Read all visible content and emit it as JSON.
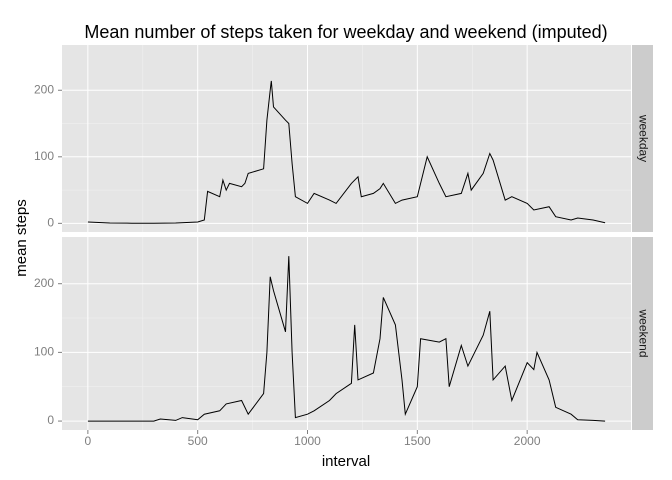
{
  "chart_data": {
    "type": "line",
    "title": "Mean number of steps taken for weekday and weekend (imputed)",
    "x_label": "interval",
    "y_label": "mean steps",
    "xlim": [
      -117.75,
      2472.75
    ],
    "ylim": [
      -13,
      268
    ],
    "xticks": [
      0,
      500,
      1000,
      1500,
      2000
    ],
    "yticks": [
      0,
      100,
      200
    ],
    "grid": true,
    "panels": [
      {
        "name": "weekday",
        "color": "#000000",
        "x": [
          0,
          100,
          200,
          300,
          400,
          500,
          530,
          545,
          600,
          615,
          630,
          645,
          700,
          715,
          730,
          800,
          815,
          830,
          835,
          845,
          900,
          915,
          930,
          945,
          1000,
          1030,
          1100,
          1130,
          1200,
          1230,
          1245,
          1300,
          1330,
          1345,
          1400,
          1430,
          1500,
          1530,
          1545,
          1600,
          1630,
          1700,
          1730,
          1745,
          1800,
          1830,
          1845,
          1900,
          1930,
          2000,
          2030,
          2100,
          2130,
          2200,
          2230,
          2300,
          2355
        ],
        "values": [
          2,
          0.5,
          0.2,
          0.1,
          0.5,
          2,
          5,
          48,
          40,
          65,
          50,
          60,
          55,
          60,
          75,
          82,
          155,
          200,
          214,
          175,
          155,
          150,
          90,
          40,
          30,
          45,
          35,
          30,
          60,
          70,
          40,
          45,
          52,
          60,
          30,
          35,
          40,
          80,
          100,
          60,
          40,
          45,
          75,
          50,
          75,
          105,
          95,
          35,
          40,
          30,
          20,
          25,
          10,
          5,
          8,
          5,
          1
        ]
      },
      {
        "name": "weekend",
        "color": "#000000",
        "x": [
          0,
          300,
          330,
          400,
          430,
          500,
          530,
          600,
          630,
          700,
          730,
          800,
          815,
          830,
          845,
          900,
          915,
          930,
          945,
          1000,
          1030,
          1100,
          1130,
          1200,
          1215,
          1230,
          1300,
          1330,
          1345,
          1400,
          1415,
          1430,
          1445,
          1500,
          1515,
          1600,
          1630,
          1645,
          1700,
          1730,
          1800,
          1830,
          1845,
          1900,
          1930,
          2000,
          2030,
          2045,
          2100,
          2130,
          2200,
          2230,
          2300,
          2355
        ],
        "values": [
          0,
          0,
          3,
          1,
          5,
          2,
          10,
          15,
          25,
          30,
          10,
          40,
          100,
          210,
          190,
          130,
          240,
          100,
          5,
          10,
          15,
          30,
          40,
          55,
          140,
          60,
          70,
          120,
          180,
          140,
          100,
          60,
          10,
          50,
          120,
          115,
          120,
          50,
          110,
          80,
          125,
          160,
          60,
          80,
          30,
          85,
          75,
          100,
          60,
          20,
          10,
          2,
          1,
          0
        ]
      }
    ]
  }
}
